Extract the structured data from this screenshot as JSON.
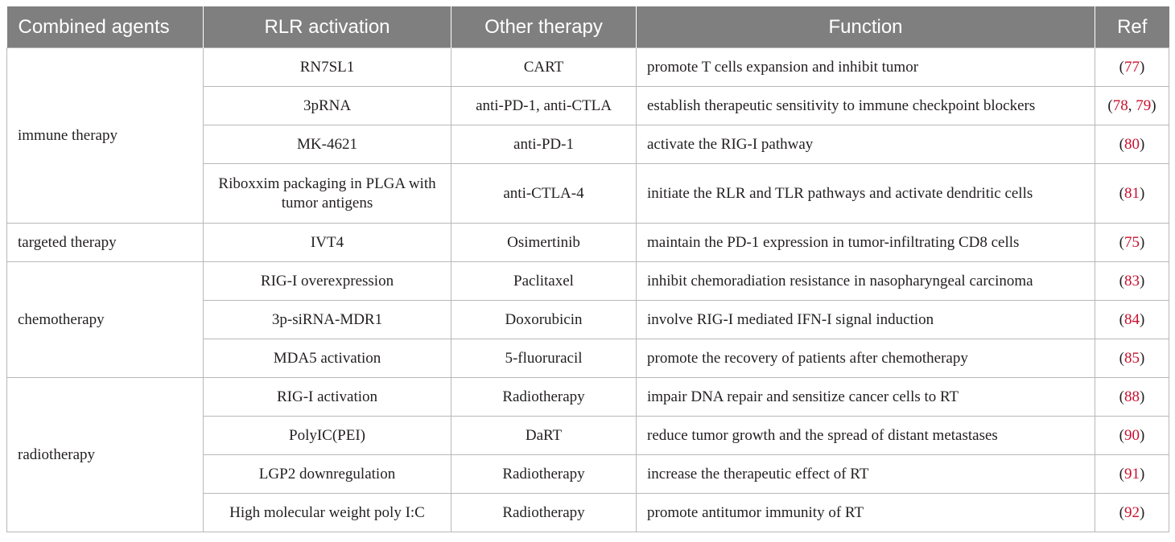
{
  "headers": [
    "Combined agents",
    "RLR activation",
    "Other therapy",
    "Function",
    "Ref"
  ],
  "groups": [
    {
      "agent": "immune therapy",
      "rows": [
        {
          "rlr": "RN7SL1",
          "other": "CART",
          "function": "promote T cells expansion and inhibit tumor",
          "refs": [
            "77"
          ]
        },
        {
          "rlr": "3pRNA",
          "other": "anti-PD-1, anti-CTLA",
          "function": "establish therapeutic sensitivity to immune checkpoint blockers",
          "refs": [
            "78",
            "79"
          ]
        },
        {
          "rlr": "MK-4621",
          "other": "anti-PD-1",
          "function": "activate the RIG-I pathway",
          "refs": [
            "80"
          ]
        },
        {
          "rlr": "Riboxxim packaging in PLGA with tumor antigens",
          "other": "anti-CTLA-4",
          "function": "initiate the RLR and TLR pathways and activate dendritic cells",
          "refs": [
            "81"
          ]
        }
      ]
    },
    {
      "agent": "targeted therapy",
      "rows": [
        {
          "rlr": "IVT4",
          "other": "Osimertinib",
          "function": "maintain the PD-1 expression in tumor-infiltrating CD8 cells",
          "refs": [
            "75"
          ]
        }
      ]
    },
    {
      "agent": "chemotherapy",
      "rows": [
        {
          "rlr": "RIG-I overexpression",
          "other": "Paclitaxel",
          "function": "inhibit chemoradiation resistance in nasopharyngeal carcinoma",
          "refs": [
            "83"
          ]
        },
        {
          "rlr": "3p-siRNA-MDR1",
          "other": "Doxorubicin",
          "function": "involve RIG-I mediated IFN-I signal induction",
          "refs": [
            "84"
          ]
        },
        {
          "rlr": "MDA5 activation",
          "other": "5-fluoruracil",
          "function": "promote the recovery of patients after chemotherapy",
          "refs": [
            "85"
          ]
        }
      ]
    },
    {
      "agent": "radiotherapy",
      "rows": [
        {
          "rlr": "RIG-I activation",
          "other": "Radiotherapy",
          "function": "impair DNA repair and sensitize cancer cells to RT",
          "refs": [
            "88"
          ]
        },
        {
          "rlr": "PolyIC(PEI)",
          "other": "DaRT",
          "function": "reduce tumor growth and the spread of distant metastases",
          "refs": [
            "90"
          ]
        },
        {
          "rlr": "LGP2 downregulation",
          "other": "Radiotherapy",
          "function": "increase the therapeutic effect of RT",
          "refs": [
            "91"
          ]
        },
        {
          "rlr": "High molecular weight poly I:C",
          "other": "Radiotherapy",
          "function": "promote antitumor immunity of RT",
          "refs": [
            "92"
          ]
        }
      ]
    }
  ]
}
